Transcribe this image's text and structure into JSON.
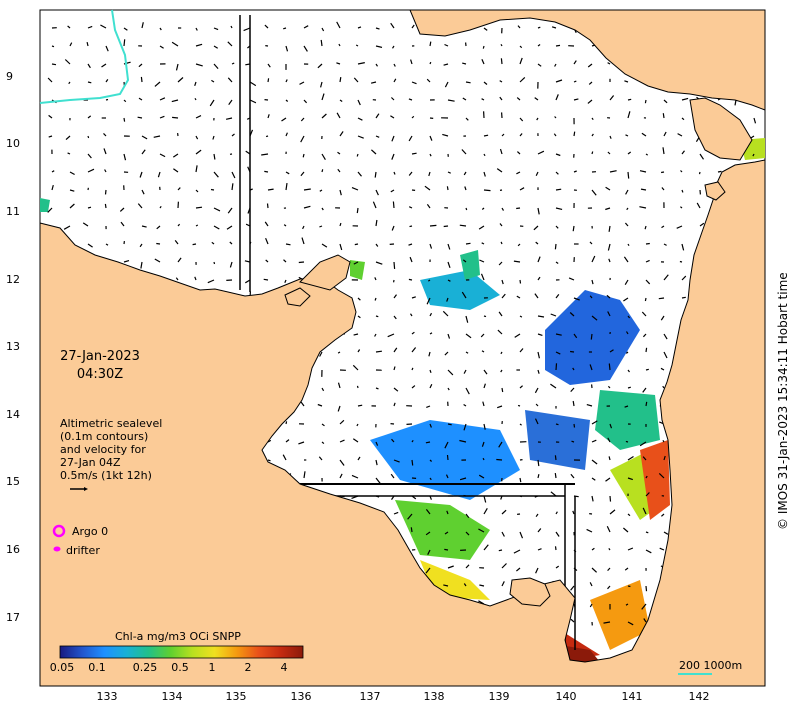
{
  "date_label": {
    "date": "27-Jan-2023",
    "time": "04:30Z"
  },
  "altimetry_note": [
    "Altimetric sealevel",
    "(0.1m contours)",
    "and velocity for",
    "27-Jan 04Z",
    "0.5m/s (1kt 12h)"
  ],
  "legend": {
    "argo": "Argo 0",
    "drifter": "drifter",
    "argo_color": "#ff00ff",
    "drifter_color": "#ff00ff"
  },
  "colorbar": {
    "title": "Chl-a mg/m3 OCi SNPP",
    "ticks": [
      "0.05",
      "0.1",
      "0.25",
      "0.5",
      "1",
      "2",
      "4"
    ],
    "colors": [
      "#1a1a80",
      "#2255cc",
      "#1e90ff",
      "#19b0d6",
      "#22c08a",
      "#5fd030",
      "#b8e020",
      "#f0e020",
      "#f59a10",
      "#e8501a",
      "#c42a10",
      "#8b1a0a"
    ]
  },
  "axes": {
    "longitude_ticks": [
      "133",
      "134",
      "135",
      "136",
      "137",
      "138",
      "139",
      "140",
      "141",
      "142"
    ],
    "latitude_ticks": [
      "9",
      "10",
      "11",
      "12",
      "13",
      "14",
      "15",
      "16",
      "17"
    ]
  },
  "scale_bar": {
    "label": "200  1000m",
    "color": "#40e0d0"
  },
  "credit": "© IMOS 31-Jan-2023 15:34:11 Hobart time",
  "colors": {
    "land": "#fbcb97",
    "sea": "#ffffff",
    "coastline": "#000000",
    "contour_200m": "#40e0d0"
  }
}
